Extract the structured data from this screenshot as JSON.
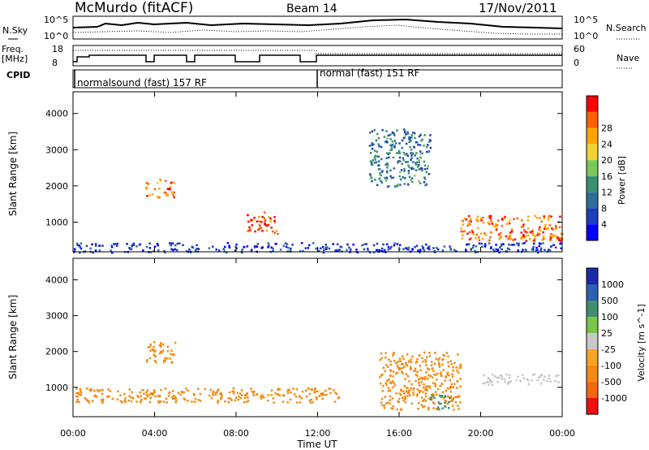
{
  "header": {
    "station": "McMurdo (fitACF)",
    "beam": "Beam 14",
    "date": "17/Nov/2011"
  },
  "panels": {
    "nsky": {
      "label": "N.Sky",
      "top_tick": "10^5",
      "bottom_tick": "10^0"
    },
    "nsearch": {
      "label": "N.Search",
      "top_tick": "10^5",
      "bottom_tick": "10^0"
    },
    "freq": {
      "label_line1": "Freq.",
      "label_line2": "[MHz]",
      "top_tick": "18",
      "bottom_tick": "8"
    },
    "nave": {
      "label": "Nave",
      "top_tick": "60",
      "bottom_tick": "0"
    },
    "cpid": {
      "label": "CPID",
      "mode1": "normalsound (fast) 157 RF",
      "mode2": "normal (fast) 151 RF"
    }
  },
  "colors": {
    "power_scale": [
      "#0000ff",
      "#1d3fb8",
      "#2e6e9e",
      "#3b8e73",
      "#78c85a",
      "#f0d232",
      "#ffa500",
      "#ff6000",
      "#ff0000"
    ],
    "velocity_scale": [
      "#1a2aa8",
      "#2f5fb3",
      "#3f8f6f",
      "#79c64a",
      "#c8c8c8",
      "#f5a623",
      "#f48a12",
      "#f26a10",
      "#ee1010"
    ]
  },
  "chart_data": [
    {
      "type": "heatmap",
      "panel": "power",
      "ylabel": "Slant Range [km]",
      "yticks": [
        "1000",
        "2000",
        "3000",
        "4000"
      ],
      "ylim": [
        180,
        4600
      ],
      "xlim": [
        "00:00",
        "24:00"
      ],
      "colorbar_label": "Power [dB]",
      "colorbar_ticks": [
        "4",
        "8",
        "12",
        "16",
        "20",
        "24",
        "28"
      ],
      "clim": [
        0,
        32
      ],
      "features": [
        {
          "x_start": "00:00",
          "x_end": "24:00",
          "y_start": 180,
          "y_end": 450,
          "description": "ground scatter band, near range"
        },
        {
          "x_start": "03:30",
          "x_end": "05:00",
          "y_start": 1700,
          "y_end": 2200,
          "value": 26
        },
        {
          "x_start": "08:30",
          "x_end": "10:00",
          "y_start": 700,
          "y_end": 1300,
          "value": 28
        },
        {
          "x_start": "19:00",
          "x_end": "24:00",
          "y_start": 500,
          "y_end": 1200,
          "value": 26
        },
        {
          "x_start": "14:30",
          "x_end": "17:30",
          "y_start": 2000,
          "y_end": 3600,
          "value": 10
        }
      ]
    },
    {
      "type": "heatmap",
      "panel": "velocity",
      "ylabel": "Slant Range [km]",
      "yticks": [
        "1000",
        "2000",
        "3000",
        "4000"
      ],
      "ylim": [
        180,
        4600
      ],
      "xlim": [
        "00:00",
        "24:00"
      ],
      "xticks": [
        "00:00",
        "04:00",
        "08:00",
        "12:00",
        "16:00",
        "20:00",
        "00:00"
      ],
      "xlabel": "Time UT",
      "colorbar_label": "Velocity [m s^-1]",
      "colorbar_ticks": [
        "1000",
        "500",
        "100",
        "25",
        "-25",
        "-100",
        "-500",
        "-1000"
      ],
      "features": [
        {
          "x_start": "00:00",
          "x_end": "13:00",
          "y_start": 600,
          "y_end": 1000,
          "value": -150
        },
        {
          "x_start": "03:30",
          "x_end": "05:00",
          "y_start": 1700,
          "y_end": 2300,
          "value": -300
        },
        {
          "x_start": "15:00",
          "x_end": "19:00",
          "y_start": 400,
          "y_end": 2000,
          "value": -150
        },
        {
          "x_start": "17:30",
          "x_end": "18:30",
          "y_start": 400,
          "y_end": 800,
          "value": 300
        },
        {
          "x_start": "20:00",
          "x_end": "24:00",
          "y_start": 1100,
          "y_end": 1400,
          "value": 0
        }
      ]
    }
  ]
}
